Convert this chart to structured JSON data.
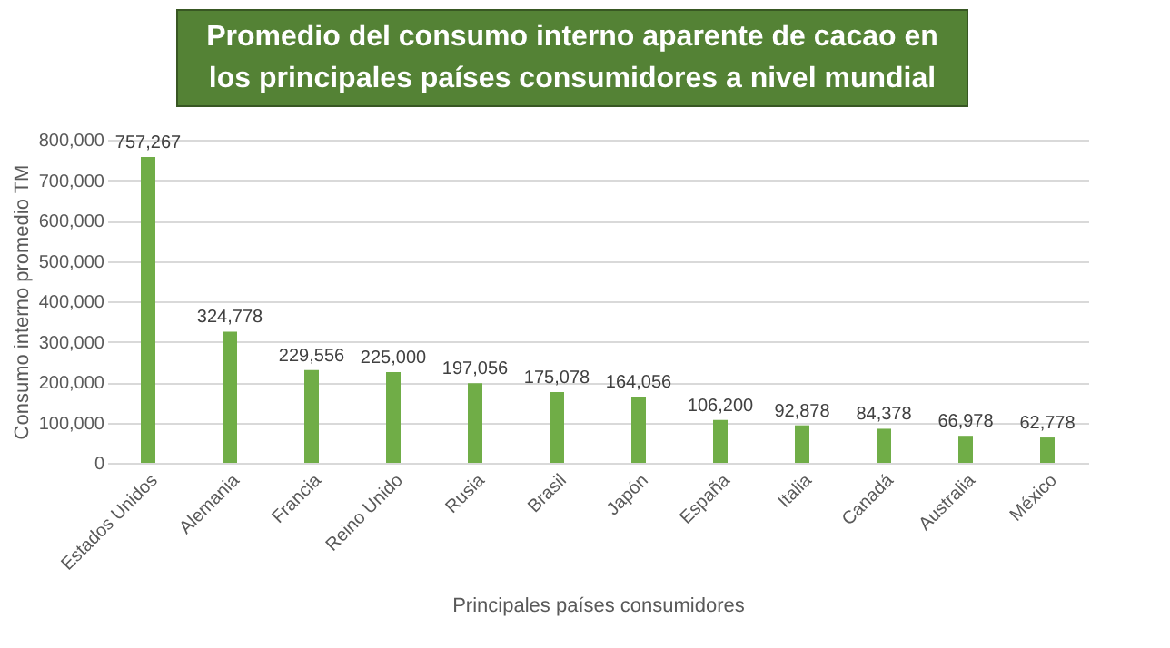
{
  "chart_data": {
    "type": "bar",
    "title": "Promedio del consumo interno aparente de cacao en los principales países consumidores a nivel mundial",
    "xlabel": "Principales países consumidores",
    "ylabel": "Consumo interno promedio TM",
    "categories": [
      "Estados Unidos",
      "Alemania",
      "Francia",
      "Reino Unido",
      "Rusia",
      "Brasil",
      "Japón",
      "España",
      "Italia",
      "Canadá",
      "Australia",
      "México"
    ],
    "values": [
      757267,
      324778,
      229556,
      225000,
      197056,
      175078,
      164056,
      106200,
      92878,
      84378,
      66978,
      62778
    ],
    "value_labels": [
      "757,267",
      "324,778",
      "229,556",
      "225,000",
      "197,056",
      "175,078",
      "164,056",
      "106,200",
      "92,878",
      "84,378",
      "66,978",
      "62,778"
    ],
    "color": "#70ad47",
    "ylim": [
      0,
      800000
    ],
    "yticks": [
      0,
      {
        "value": 100000,
        "label": "100,000"
      },
      {
        "value": 200000,
        "label": "200,000"
      },
      {
        "value": 300000,
        "label": "300,000"
      },
      {
        "value": 400000,
        "label": "400,000"
      },
      {
        "value": 500000,
        "label": "500,000"
      },
      {
        "value": 600000,
        "label": "600,000"
      },
      {
        "value": 700000,
        "label": "700,000"
      },
      {
        "value": 800000,
        "label": "800,000"
      }
    ],
    "grid": "y"
  }
}
